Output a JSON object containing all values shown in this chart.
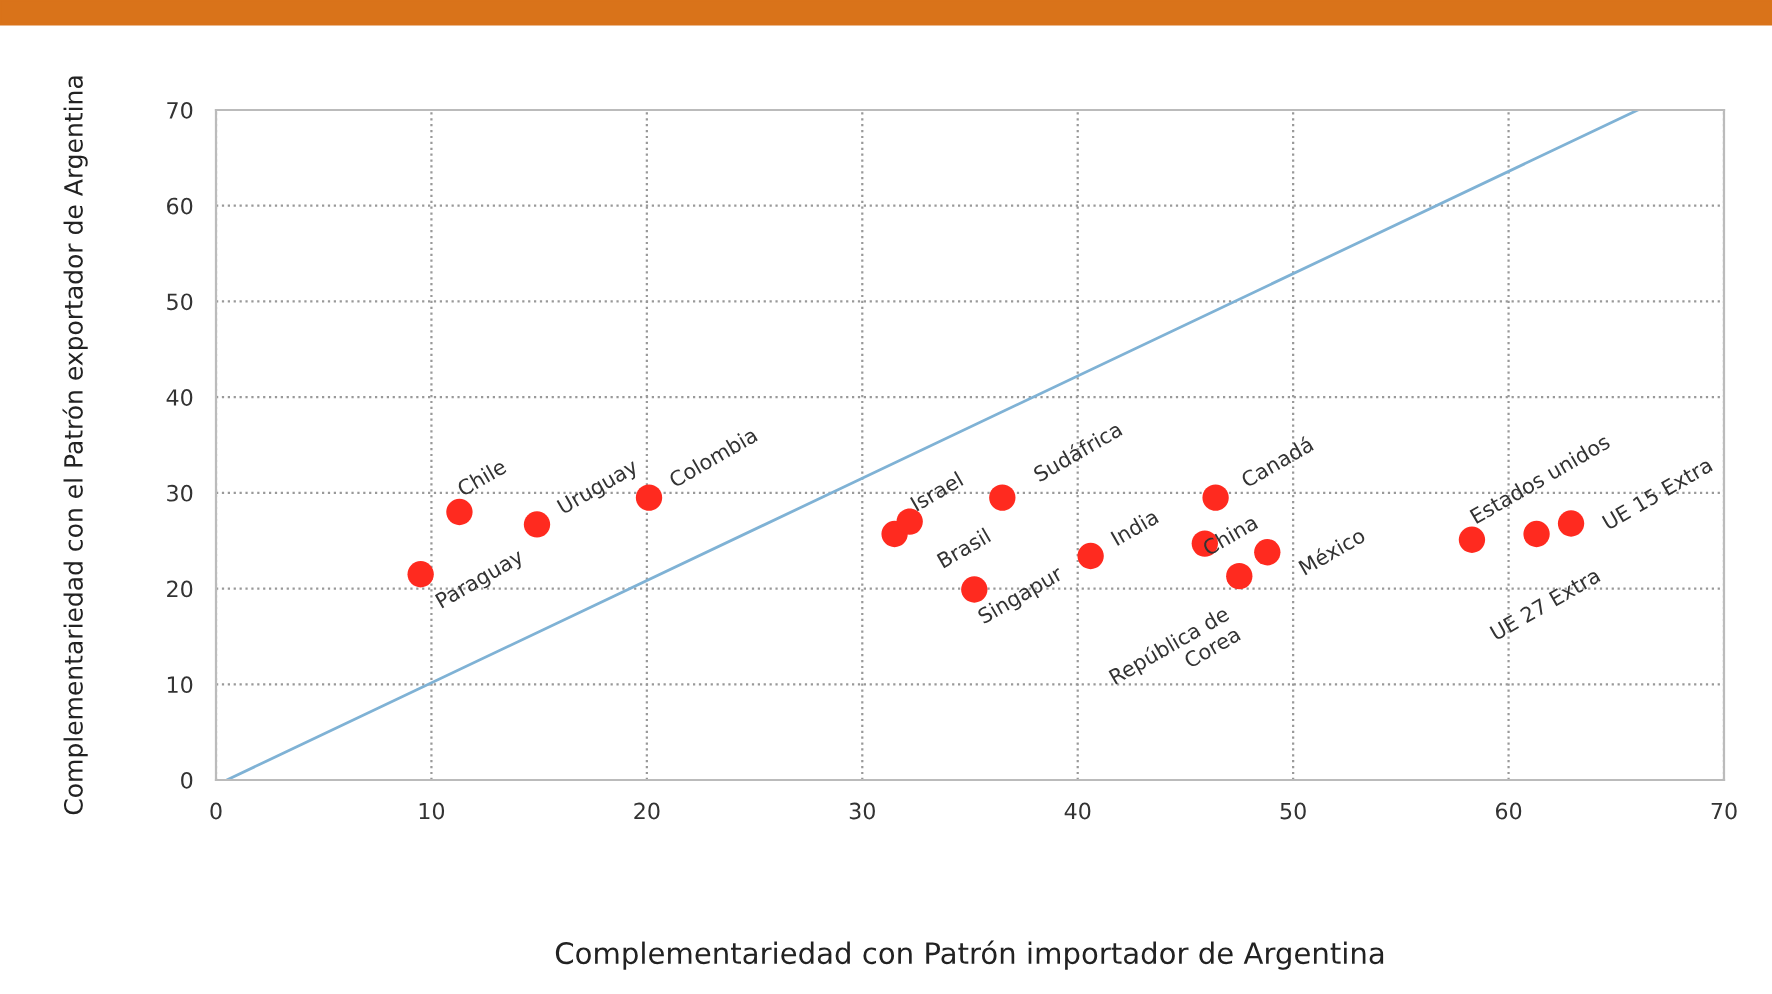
{
  "chart_data": {
    "type": "scatter",
    "xlabel": "Complementariedad con Patrón importador de Argentina",
    "ylabel": "Complementariedad con el Patrón exportador de Argentina",
    "xlim": [
      0,
      70
    ],
    "ylim": [
      0,
      70
    ],
    "xticks": [
      0,
      10,
      20,
      30,
      40,
      50,
      60,
      70
    ],
    "yticks": [
      0,
      10,
      20,
      30,
      40,
      50,
      60,
      70
    ],
    "grid": true,
    "legend": false,
    "series": [
      {
        "marker": "circle",
        "color": "#ff2a1f",
        "x": [
          9.5,
          11.3,
          14.9,
          20.1,
          31.5,
          32.2,
          35.2,
          36.5,
          40.6,
          45.9,
          46.4,
          47.5,
          48.8,
          58.3,
          61.3,
          62.9
        ],
        "values": [
          21.5,
          28.0,
          26.7,
          29.5,
          25.7,
          27.0,
          19.9,
          29.5,
          23.4,
          24.7,
          29.5,
          21.3,
          23.8,
          25.1,
          25.7,
          26.8
        ]
      },
      {
        "type": "line",
        "color": "#7fb2d5",
        "x": [
          0.5,
          66
        ],
        "values": [
          0,
          70
        ]
      }
    ],
    "annotations": [
      {
        "text": "Paraguay",
        "x": 9.5,
        "y": 21.5
      },
      {
        "text": "Chile",
        "x": 11.3,
        "y": 28.0
      },
      {
        "text": "Uruguay",
        "x": 14.9,
        "y": 26.7
      },
      {
        "text": "Colombia",
        "x": 20.1,
        "y": 29.5
      },
      {
        "text": "Brasil",
        "x": 31.5,
        "y": 25.7
      },
      {
        "text": "Israel",
        "x": 32.2,
        "y": 27.0
      },
      {
        "text": "Singapur",
        "x": 35.2,
        "y": 19.9
      },
      {
        "text": "Sudáfrica",
        "x": 36.5,
        "y": 29.5
      },
      {
        "text": "India",
        "x": 40.6,
        "y": 23.4
      },
      {
        "text": "China",
        "x": 45.9,
        "y": 24.7
      },
      {
        "text": "Canadá",
        "x": 46.4,
        "y": 29.5
      },
      {
        "text": "República de\nCorea",
        "x": 47.5,
        "y": 21.3
      },
      {
        "text": "México",
        "x": 48.8,
        "y": 23.8
      },
      {
        "text": "Estados unidos",
        "x": 58.3,
        "y": 25.1
      },
      {
        "text": "UE 27 Extra",
        "x": 61.3,
        "y": 25.7
      },
      {
        "text": "UE 15 Extra",
        "x": 62.9,
        "y": 26.8
      }
    ]
  }
}
